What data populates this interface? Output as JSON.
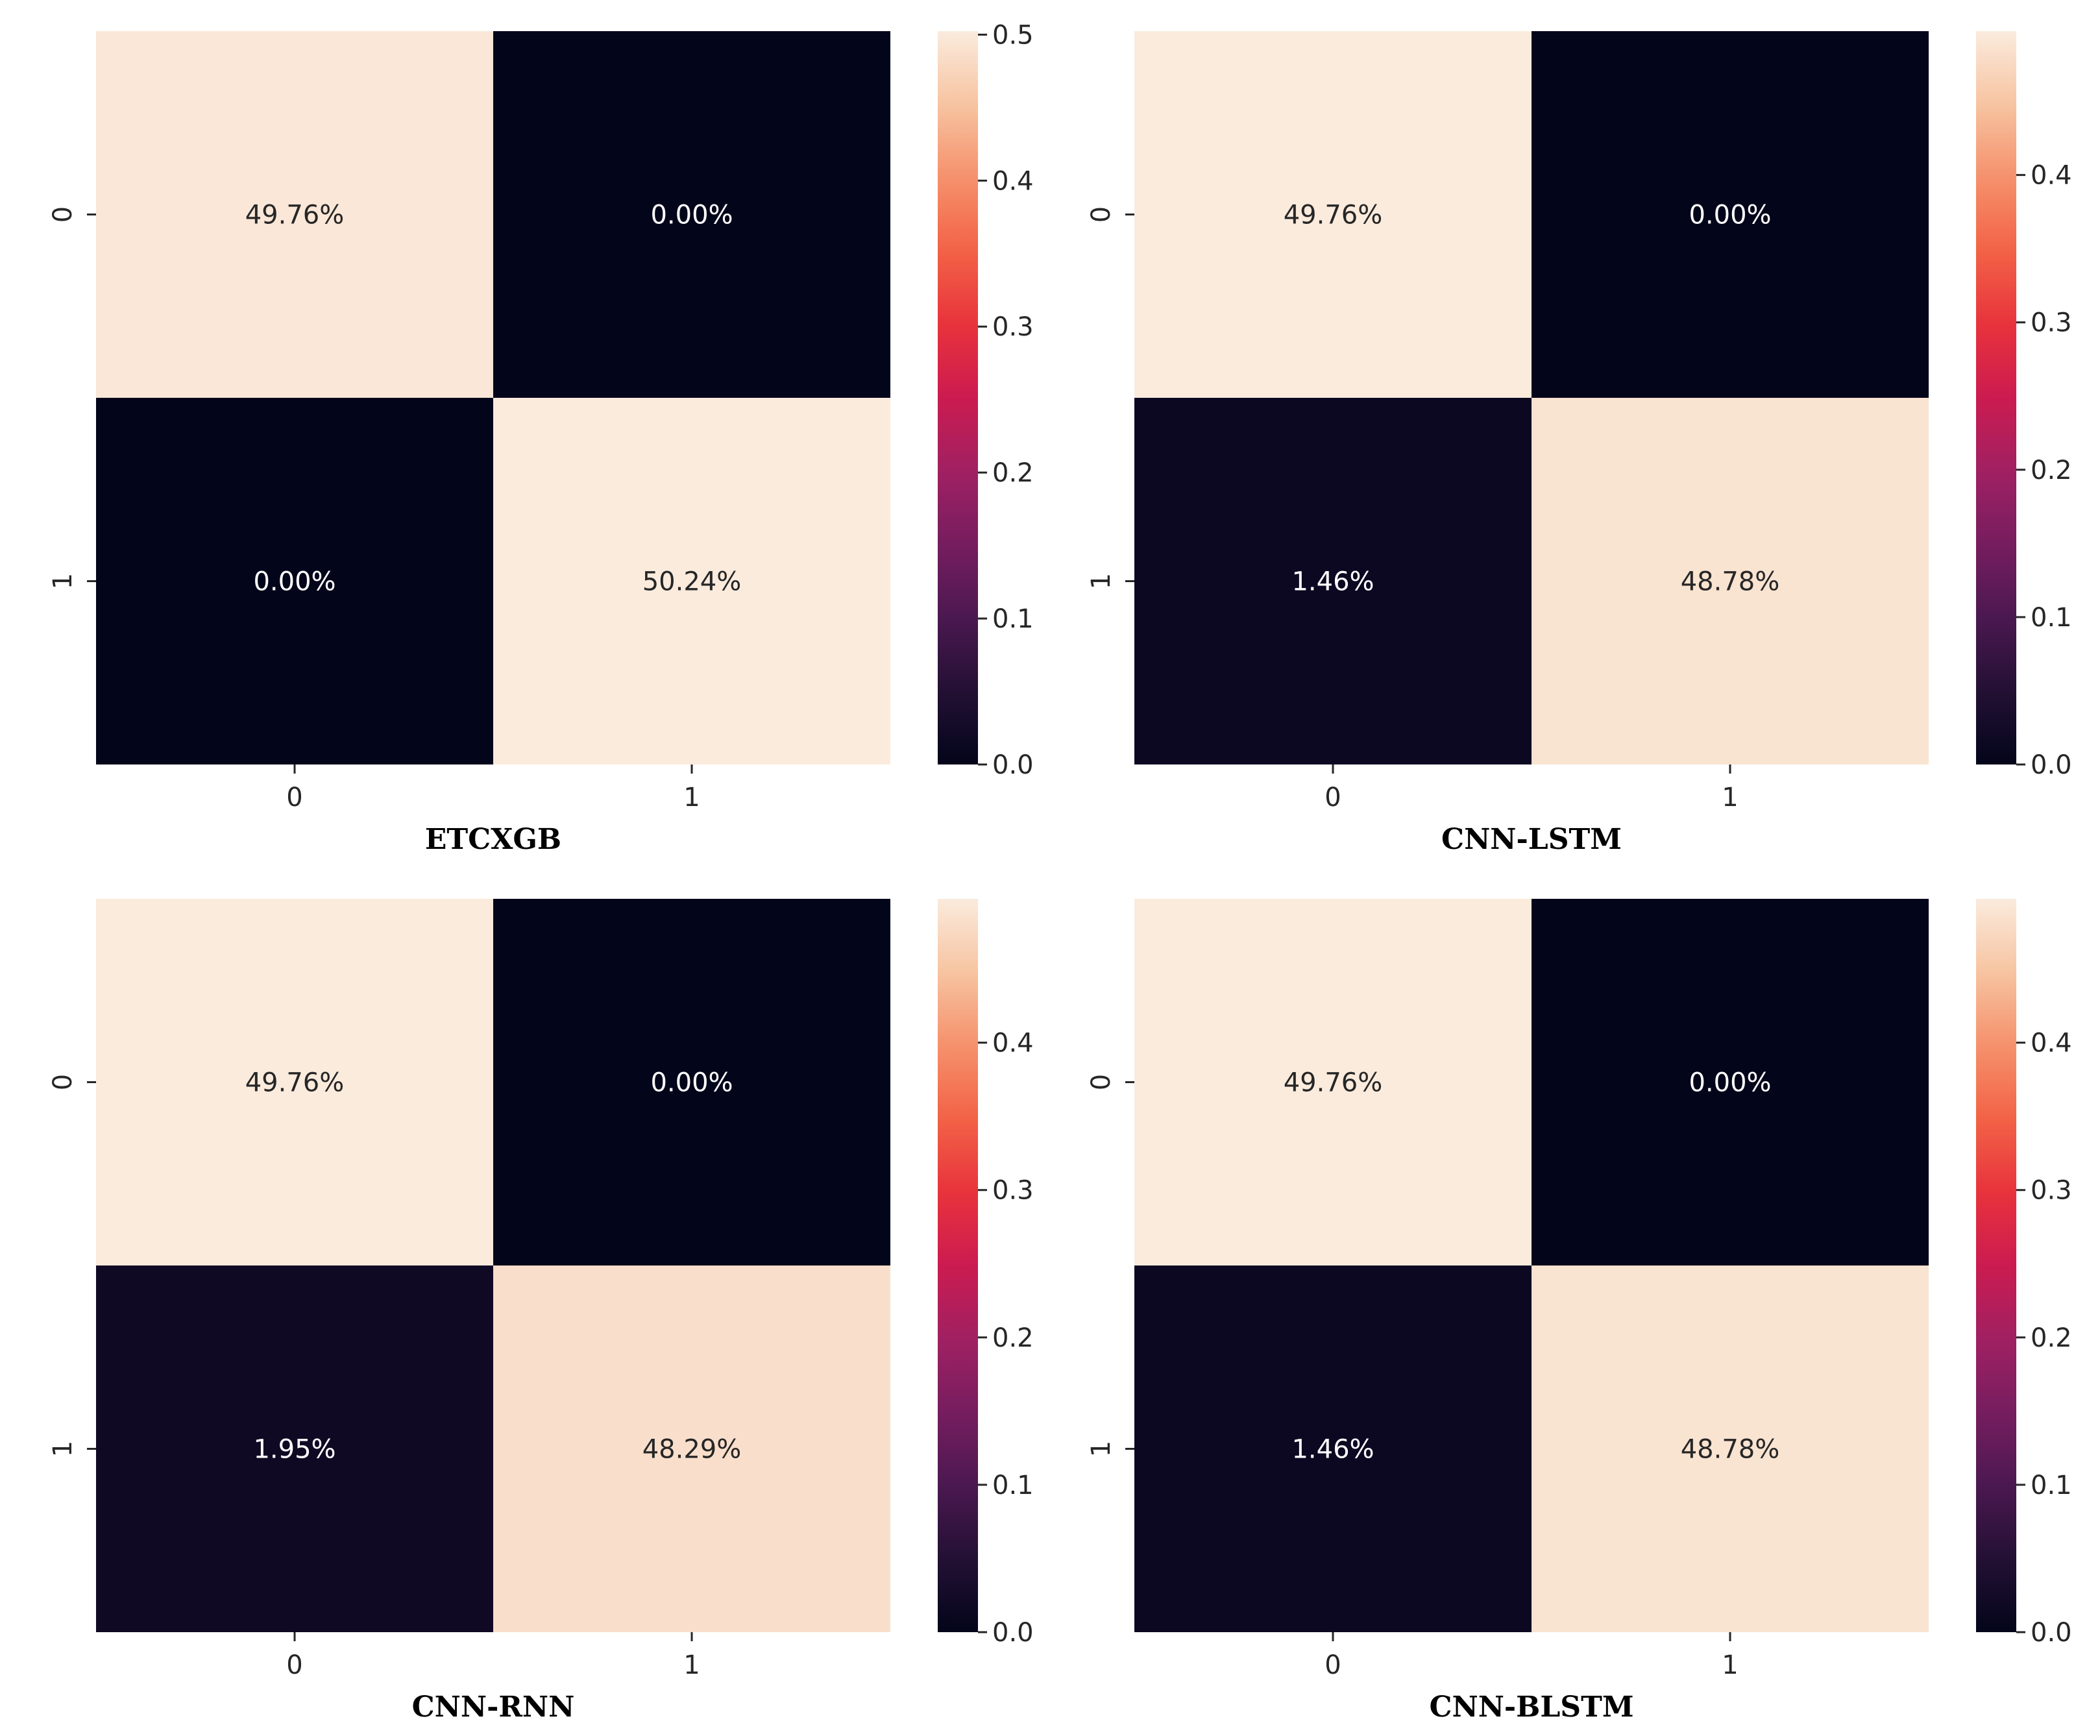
{
  "chart_data": [
    {
      "type": "heatmap",
      "title": "ETCXGB",
      "row_labels": [
        "0",
        "1"
      ],
      "col_labels": [
        "0",
        "1"
      ],
      "values": [
        [
          0.4976,
          0.0
        ],
        [
          0.0,
          0.5024
        ]
      ],
      "cell_labels": [
        [
          "49.76%",
          "0.00%"
        ],
        [
          "0.00%",
          "50.24%"
        ]
      ],
      "colorbar": {
        "min": 0.0,
        "max": 0.5024,
        "ticks": [
          0.0,
          0.1,
          0.2,
          0.3,
          0.4,
          0.5
        ],
        "tick_labels": [
          "0.0",
          "0.1",
          "0.2",
          "0.3",
          "0.4",
          "0.5"
        ]
      }
    },
    {
      "type": "heatmap",
      "title": "CNN-LSTM",
      "row_labels": [
        "0",
        "1"
      ],
      "col_labels": [
        "0",
        "1"
      ],
      "values": [
        [
          0.4976,
          0.0
        ],
        [
          0.0146,
          0.4878
        ]
      ],
      "cell_labels": [
        [
          "49.76%",
          "0.00%"
        ],
        [
          "1.46%",
          "48.78%"
        ]
      ],
      "colorbar": {
        "min": 0.0,
        "max": 0.4976,
        "ticks": [
          0.0,
          0.1,
          0.2,
          0.3,
          0.4
        ],
        "tick_labels": [
          "0.0",
          "0.1",
          "0.2",
          "0.3",
          "0.4"
        ]
      }
    },
    {
      "type": "heatmap",
      "title": "CNN-RNN",
      "row_labels": [
        "0",
        "1"
      ],
      "col_labels": [
        "0",
        "1"
      ],
      "values": [
        [
          0.4976,
          0.0
        ],
        [
          0.0195,
          0.4829
        ]
      ],
      "cell_labels": [
        [
          "49.76%",
          "0.00%"
        ],
        [
          "1.95%",
          "48.29%"
        ]
      ],
      "colorbar": {
        "min": 0.0,
        "max": 0.4976,
        "ticks": [
          0.0,
          0.1,
          0.2,
          0.3,
          0.4
        ],
        "tick_labels": [
          "0.0",
          "0.1",
          "0.2",
          "0.3",
          "0.4"
        ]
      }
    },
    {
      "type": "heatmap",
      "title": "CNN-BLSTM",
      "row_labels": [
        "0",
        "1"
      ],
      "col_labels": [
        "0",
        "1"
      ],
      "values": [
        [
          0.4976,
          0.0
        ],
        [
          0.0146,
          0.4878
        ]
      ],
      "cell_labels": [
        [
          "49.76%",
          "0.00%"
        ],
        [
          "1.46%",
          "48.78%"
        ]
      ],
      "colorbar": {
        "min": 0.0,
        "max": 0.4976,
        "ticks": [
          0.0,
          0.1,
          0.2,
          0.3,
          0.4
        ],
        "tick_labels": [
          "0.0",
          "0.1",
          "0.2",
          "0.3",
          "0.4"
        ]
      }
    }
  ],
  "colormap": "rocket",
  "colors": {
    "low": "#03051a",
    "high": "#faebdd",
    "text_on_light": "#262626",
    "text_on_dark": "#ffffff"
  }
}
